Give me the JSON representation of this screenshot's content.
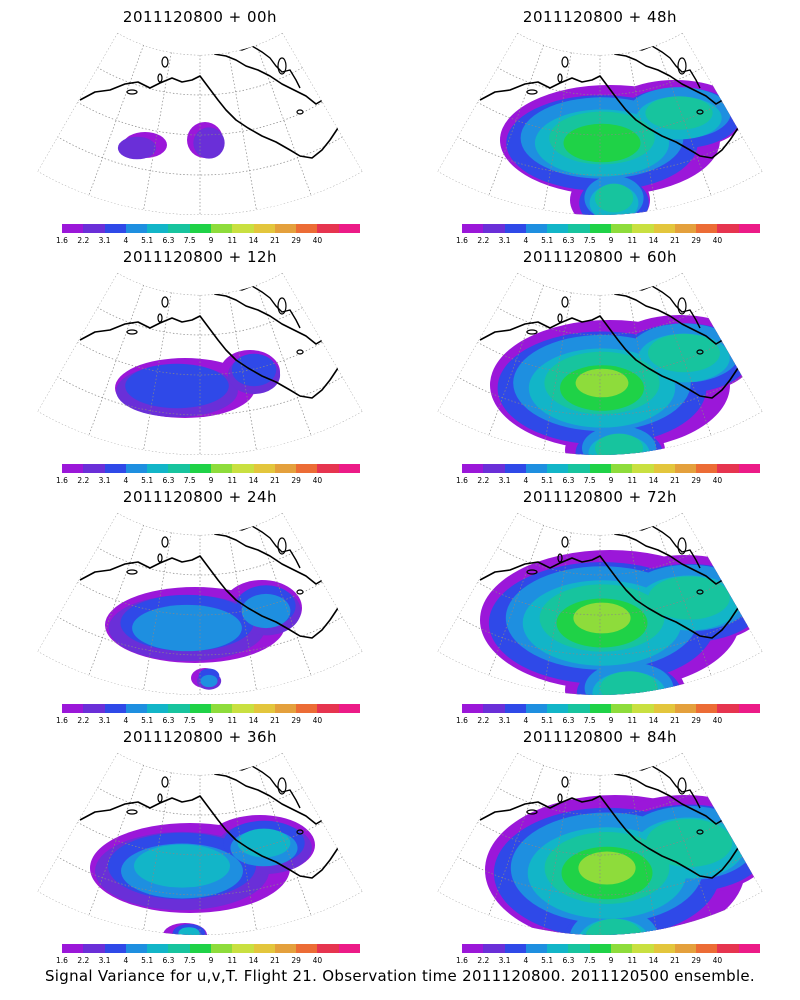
{
  "panels": [
    {
      "title": "2011120800 + 00h",
      "intensity": 0
    },
    {
      "title": "2011120800 + 48h",
      "intensity": 4
    },
    {
      "title": "2011120800 + 12h",
      "intensity": 1
    },
    {
      "title": "2011120800 + 60h",
      "intensity": 5
    },
    {
      "title": "2011120800 + 24h",
      "intensity": 2
    },
    {
      "title": "2011120800 + 72h",
      "intensity": 6
    },
    {
      "title": "2011120800 + 36h",
      "intensity": 3
    },
    {
      "title": "2011120800 + 84h",
      "intensity": 7
    }
  ],
  "colorbar": {
    "labels": [
      "1.6",
      "2.2",
      "3.1",
      "4",
      "5.1",
      "6.3",
      "7.5",
      "9",
      "11",
      "14",
      "21",
      "29",
      "40"
    ],
    "colors": [
      "#9b17d9",
      "#6a2fd8",
      "#2f49e8",
      "#1e8fe0",
      "#12b5c8",
      "#17c49e",
      "#1fd247",
      "#8edc3b",
      "#c9e040",
      "#e3c63c",
      "#e4a03c",
      "#ec6c35",
      "#e6344f",
      "#ec1b87"
    ]
  },
  "caption": "Signal Variance for u,v,T. Flight 21. Observation time 2011120800. 2011120500 ensemble."
}
